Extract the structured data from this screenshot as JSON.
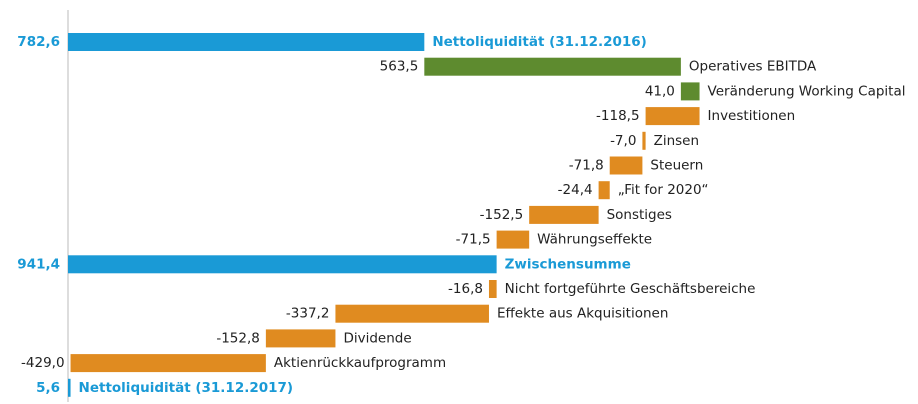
{
  "chart_data": {
    "type": "waterfall",
    "orientation": "horizontal",
    "categories": [
      "Nettoliquidität (31.12.2016)",
      "Operatives EBITDA",
      "Veränderung Working Capital",
      "Investitionen",
      "Zinsen",
      "Steuern",
      "„Fit for 2020“",
      "Sonstiges",
      "Währungseffekte",
      "Zwischensumme",
      "Nicht fortgeführte Geschäftsbereiche",
      "Effekte aus Akquisitionen",
      "Dividende",
      "Aktienrückkaufprogramm",
      "Nettoliquidität (31.12.2017)"
    ],
    "values": [
      782.6,
      563.5,
      41.0,
      -118.5,
      -7.0,
      -71.8,
      -24.4,
      -152.5,
      -71.5,
      941.4,
      -16.8,
      -337.2,
      -152.8,
      -429.0,
      5.6
    ],
    "value_labels": [
      "782,6",
      "563,5",
      "41,0",
      "-118,5",
      "-7,0",
      "-71,8",
      "-24,4",
      "-152,5",
      "-71,5",
      "941,4",
      "-16,8",
      "-337,2",
      "-152,8",
      "-429,0",
      "5,6"
    ],
    "measure": [
      "absolute",
      "relative",
      "relative",
      "relative",
      "relative",
      "relative",
      "relative",
      "relative",
      "relative",
      "absolute",
      "relative",
      "relative",
      "relative",
      "relative",
      "absolute"
    ],
    "colors": {
      "absolute": "#1a9ad6",
      "increase": "#5e8b2f",
      "decrease": "#e08b20"
    }
  }
}
